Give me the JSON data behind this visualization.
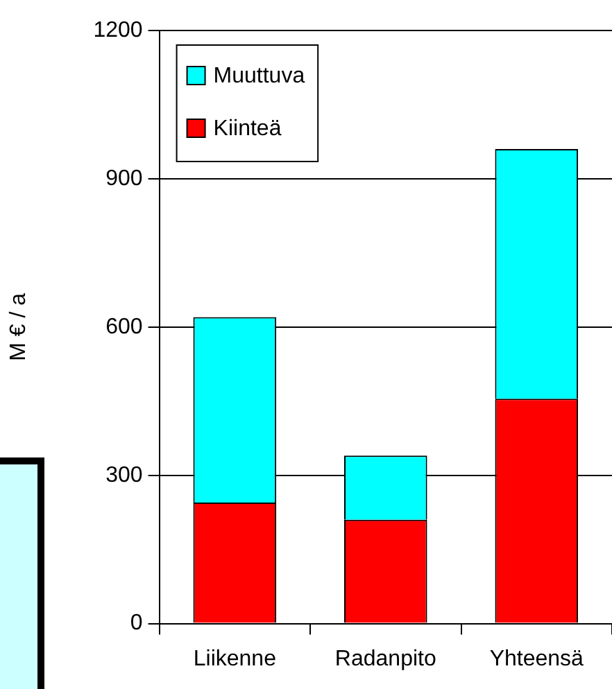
{
  "chart_data": {
    "type": "bar",
    "stacked": true,
    "ylabel": "M € / a",
    "categories": [
      "Liikenne",
      "Radanpito",
      "Yhteensä"
    ],
    "series": [
      {
        "name": "Kiinteä",
        "color": "#ff0000",
        "values": [
          245,
          210,
          455
        ]
      },
      {
        "name": "Muuttuva",
        "color": "#00ffff",
        "values": [
          375,
          130,
          505
        ]
      }
    ],
    "ylim": [
      0,
      1200
    ],
    "yticks": [
      0,
      300,
      600,
      900,
      1200
    ],
    "grid": "y",
    "legend": "top left"
  }
}
